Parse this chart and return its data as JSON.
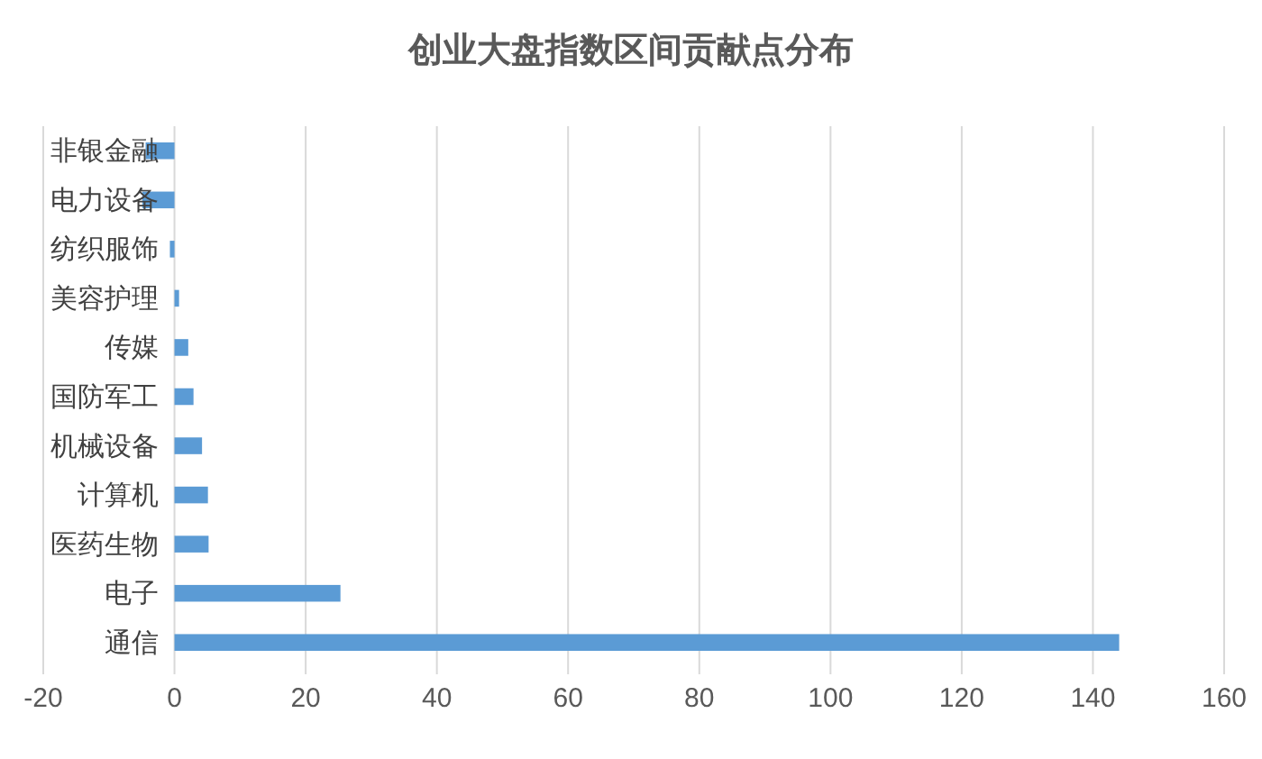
{
  "chart_data": {
    "type": "bar",
    "orientation": "horizontal",
    "title": "创业大盘指数区间贡献点分布",
    "categories": [
      "非银金融",
      "电力设备",
      "纺织服饰",
      "美容护理",
      "传媒",
      "国防军工",
      "机械设备",
      "计算机",
      "医药生物",
      "电子",
      "通信"
    ],
    "values": [
      -4.4,
      -4.9,
      -0.7,
      0.7,
      2.1,
      2.9,
      4.2,
      5.1,
      5.2,
      25.3,
      144
    ],
    "color": "#5b9bd5",
    "xlim": [
      -20,
      160
    ],
    "xticks": [
      -20,
      0,
      20,
      40,
      60,
      80,
      100,
      120,
      140,
      160
    ],
    "grid": "x"
  }
}
